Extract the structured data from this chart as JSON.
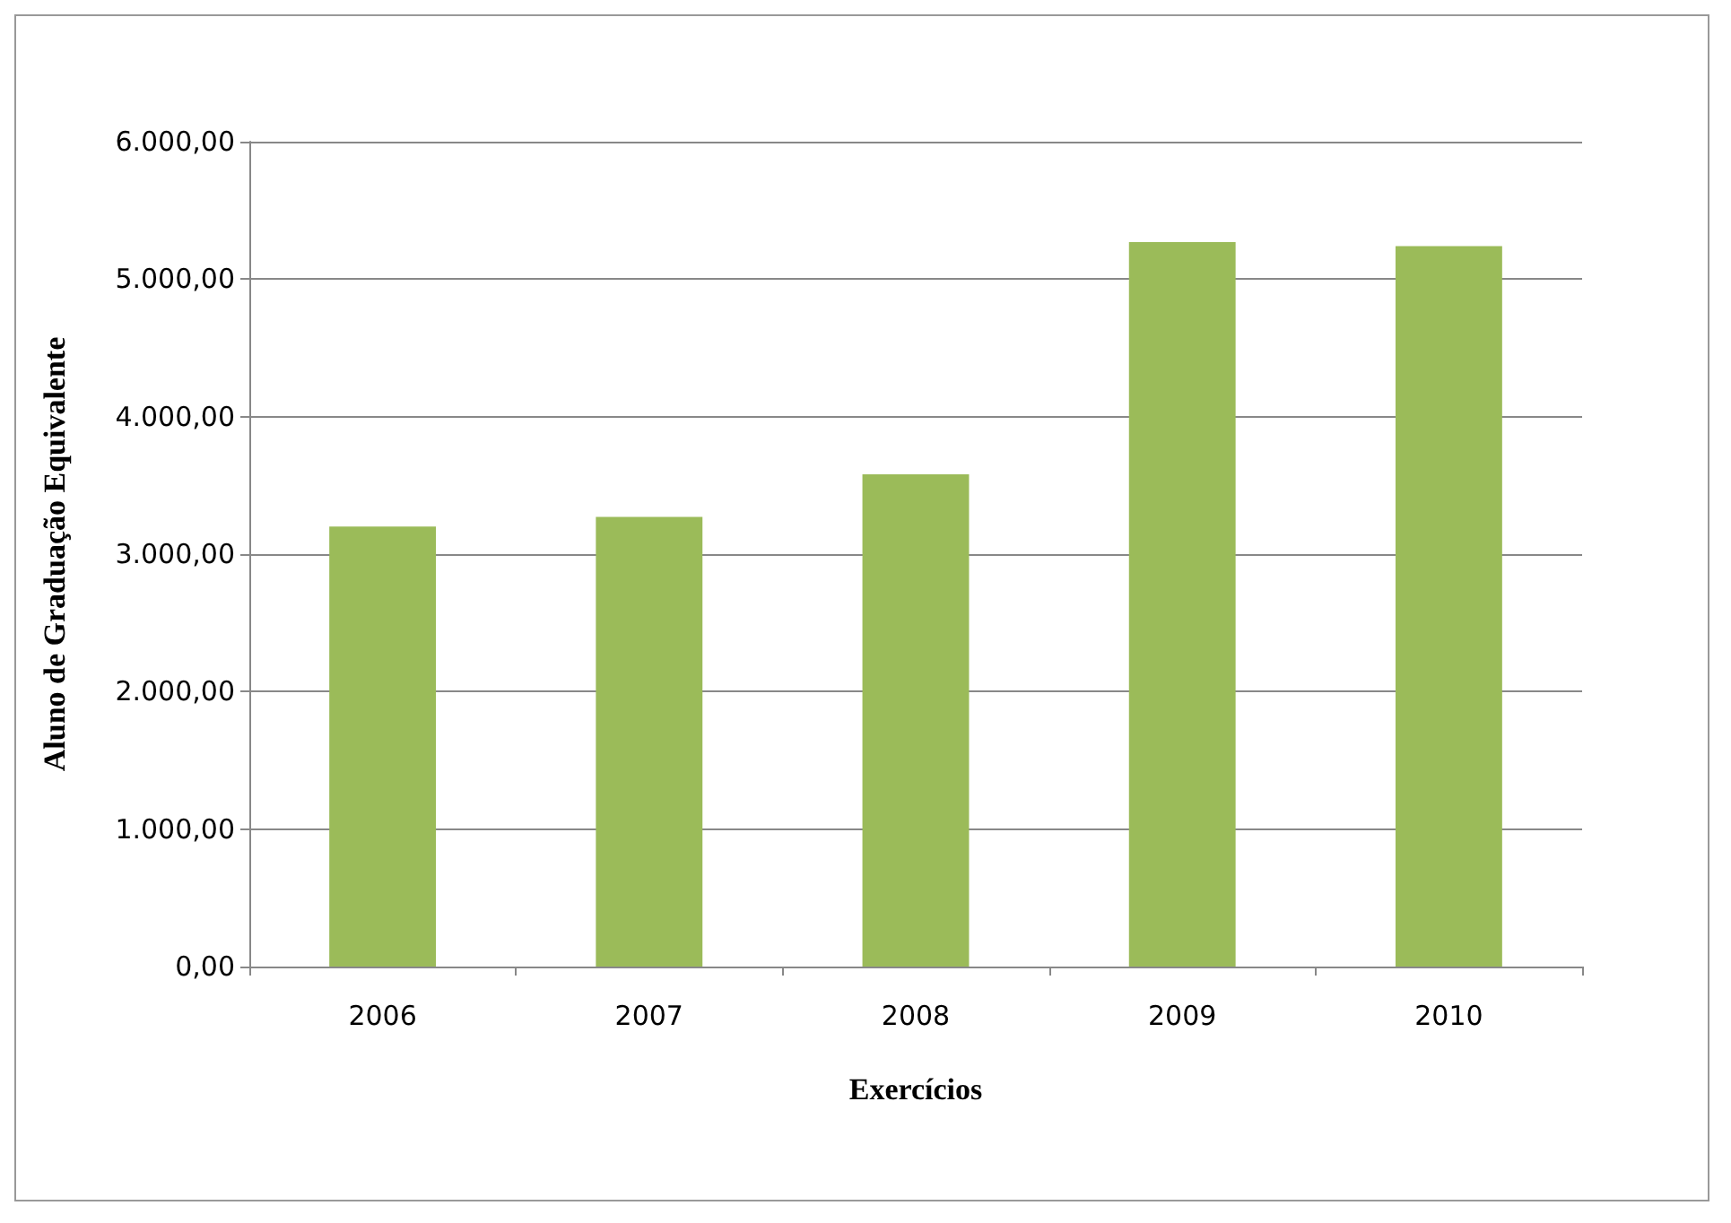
{
  "chart_data": {
    "type": "bar",
    "xlabel": "Exercícios",
    "ylabel": "Aluno de Graduação Equivalente",
    "categories": [
      "2006",
      "2007",
      "2008",
      "2009",
      "2010"
    ],
    "values": [
      3200,
      3270,
      3580,
      5270,
      5240
    ],
    "color": "#9bbb59",
    "ylim": [
      0,
      6000
    ],
    "yticks": [
      {
        "value": 0,
        "label": "0,00"
      },
      {
        "value": 1000,
        "label": "1.000,00"
      },
      {
        "value": 2000,
        "label": "2.000,00"
      },
      {
        "value": 3000,
        "label": "3.000,00"
      },
      {
        "value": 4000,
        "label": "4.000,00"
      },
      {
        "value": 5000,
        "label": "5.000,00"
      },
      {
        "value": 6000,
        "label": "6.000,00"
      }
    ],
    "grid": "y"
  }
}
